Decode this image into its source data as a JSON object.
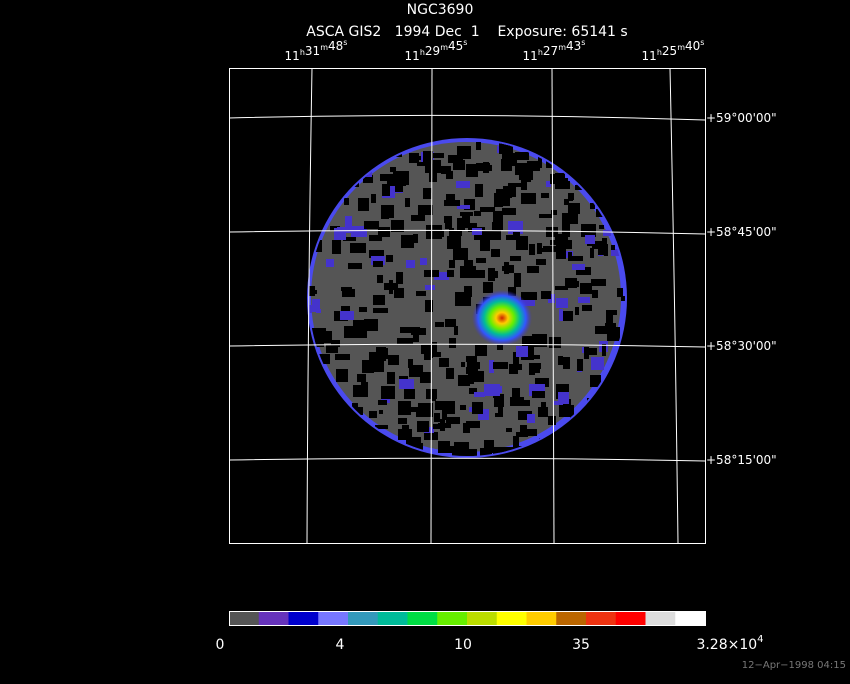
{
  "header": {
    "object": "NGC3690",
    "info": "ASCA GIS2   1994 Dec  1    Exposure: 65141 s"
  },
  "ra_axis": {
    "units": [
      "h",
      "m",
      "s"
    ],
    "labels": [
      {
        "hours": "11",
        "minutes": "31",
        "seconds": "48"
      },
      {
        "hours": "11",
        "minutes": "29",
        "seconds": "45"
      },
      {
        "hours": "11",
        "minutes": "27",
        "seconds": "43"
      },
      {
        "hours": "11",
        "minutes": "25",
        "seconds": "40"
      }
    ]
  },
  "dec_axis": {
    "labels": [
      "+59°00'00\"",
      "+58°45'00\"",
      "+58°30'00\"",
      "+58°15'00\""
    ]
  },
  "colorbar": {
    "colors": [
      "#555555",
      "#6633bb",
      "#0000cc",
      "#7777ff",
      "#3399bb",
      "#00bb99",
      "#00dd44",
      "#66ee00",
      "#bbdd00",
      "#ffff00",
      "#ffcc00",
      "#bb6600",
      "#ee3311",
      "#ff0000",
      "#dddddd",
      "#ffffff"
    ],
    "labels": [
      "0",
      "4",
      "10",
      "35"
    ],
    "max_label": {
      "mantissa": "3.28×10",
      "exponent": "4"
    }
  },
  "footer": {
    "timestamp": "12−Apr−1998 04:15"
  }
}
